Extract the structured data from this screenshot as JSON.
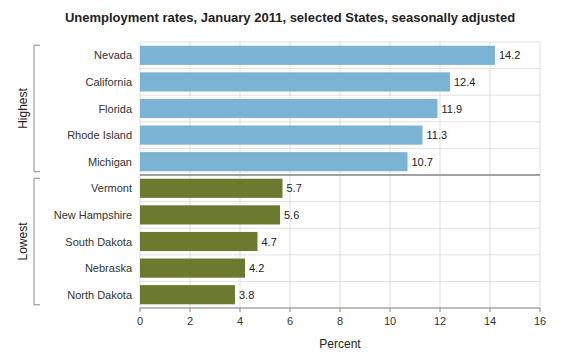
{
  "chart_data": {
    "type": "bar",
    "orientation": "horizontal",
    "title": "Unemployment rates, January 2011, selected States, seasonally adjusted",
    "categories": [
      "Nevada",
      "California",
      "Florida",
      "Rhode Island",
      "Michigan",
      "Vermont",
      "New Hampshire",
      "South Dakota",
      "Nebraska",
      "North Dakota"
    ],
    "values": [
      14.2,
      12.4,
      11.9,
      11.3,
      10.7,
      5.7,
      5.6,
      4.7,
      4.2,
      3.8
    ],
    "colors": [
      "#7ab3d4",
      "#7ab3d4",
      "#7ab3d4",
      "#7ab3d4",
      "#7ab3d4",
      "#6b7a2e",
      "#6b7a2e",
      "#6b7a2e",
      "#6b7a2e",
      "#6b7a2e"
    ],
    "xlabel": "Percent",
    "xlim": [
      0,
      16
    ],
    "xticks": [
      0,
      2,
      4,
      6,
      8,
      10,
      12,
      14,
      16
    ],
    "grid": true,
    "data_labels": true,
    "annotations": [
      "Highest",
      "Lowest"
    ]
  }
}
